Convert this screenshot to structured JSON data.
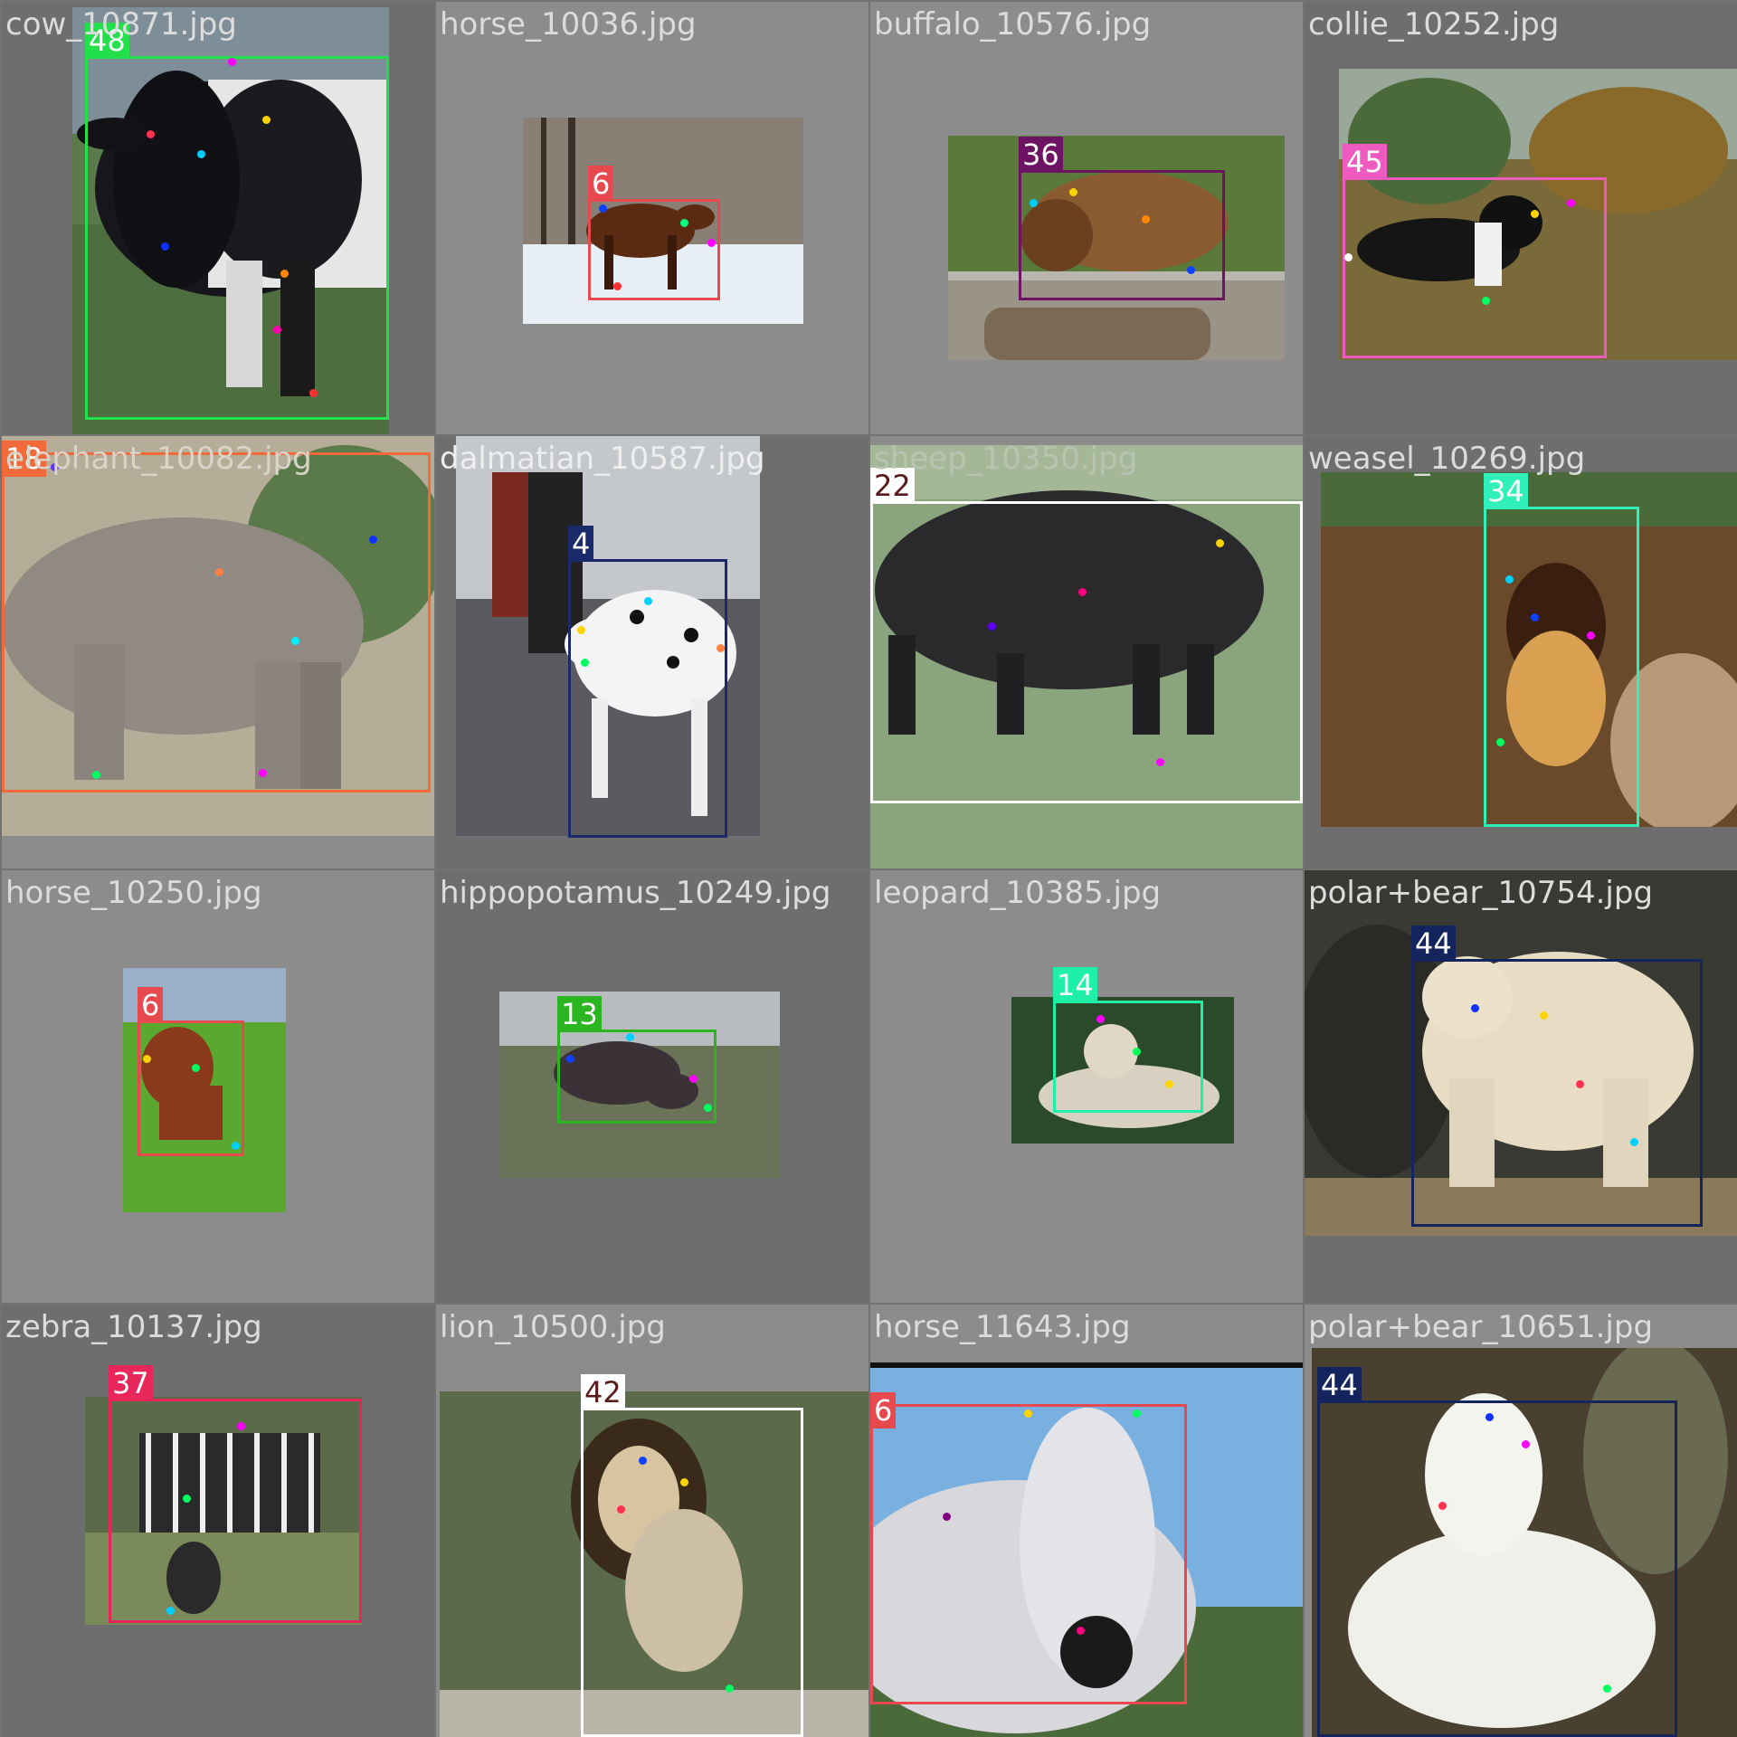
{
  "mosaic": {
    "cells": [
      {
        "filename": "cow_10871.jpg",
        "class_id": "48",
        "box_color": "#22e04a",
        "tag_text_color": "#ffffff",
        "subject": "black-and-white cow in grass"
      },
      {
        "filename": "horse_10036.jpg",
        "class_id": "6",
        "box_color": "#e8494f",
        "tag_text_color": "#ffffff",
        "subject": "brown pony on snow"
      },
      {
        "filename": "buffalo_10576.jpg",
        "class_id": "36",
        "box_color": "#6e1263",
        "tag_text_color": "#ffffff",
        "subject": "brown bison behind fence"
      },
      {
        "filename": "collie_10252.jpg",
        "class_id": "45",
        "box_color": "#ef5ac0",
        "tag_text_color": "#ffffff",
        "subject": "black and white collie in field"
      },
      {
        "filename": "elephant_10082.jpg",
        "class_id": "18",
        "box_color": "#f26a3a",
        "tag_text_color": "#ffffff",
        "subject": "elephant in dry grass"
      },
      {
        "filename": "dalmatian_10587.jpg",
        "class_id": "4",
        "box_color": "#1b2a6b",
        "tag_text_color": "#ffffff",
        "subject": "dalmatian on cobblestones"
      },
      {
        "filename": "sheep_10350.jpg",
        "class_id": "22",
        "box_color": "#ffffff",
        "tag_text_color": "#5a1a1a",
        "subject": "black sheep walking"
      },
      {
        "filename": "weasel_10269.jpg",
        "class_id": "34",
        "box_color": "#2ef0b8",
        "tag_text_color": "#ffffff",
        "subject": "pine marten on log"
      },
      {
        "filename": "horse_10250.jpg",
        "class_id": "6",
        "box_color": "#e8494f",
        "tag_text_color": "#ffffff",
        "subject": "chestnut horse grazing"
      },
      {
        "filename": "hippopotamus_10249.jpg",
        "class_id": "13",
        "box_color": "#2bb521",
        "tag_text_color": "#ffffff",
        "subject": "hippopotamus grazing"
      },
      {
        "filename": "leopard_10385.jpg",
        "class_id": "14",
        "box_color": "#1ef0a8",
        "tag_text_color": "#ffffff",
        "subject": "snow leopard lying down"
      },
      {
        "filename": "polar+bear_10754.jpg",
        "class_id": "44",
        "box_color": "#14255e",
        "tag_text_color": "#ffffff",
        "subject": "polar bear standing"
      },
      {
        "filename": "zebra_10137.jpg",
        "class_id": "37",
        "box_color": "#e8265a",
        "tag_text_color": "#ffffff",
        "subject": "zebra grazing"
      },
      {
        "filename": "lion_10500.jpg",
        "class_id": "42",
        "box_color": "#ffffff",
        "tag_text_color": "#5a1a1a",
        "subject": "male lion on rock"
      },
      {
        "filename": "horse_11643.jpg",
        "class_id": "6",
        "box_color": "#e8494f",
        "tag_text_color": "#ffffff",
        "subject": "white horse head"
      },
      {
        "filename": "polar+bear_10651.jpg",
        "class_id": "44",
        "box_color": "#14255e",
        "tag_text_color": "#ffffff",
        "subject": "polar bear sitting"
      }
    ]
  }
}
